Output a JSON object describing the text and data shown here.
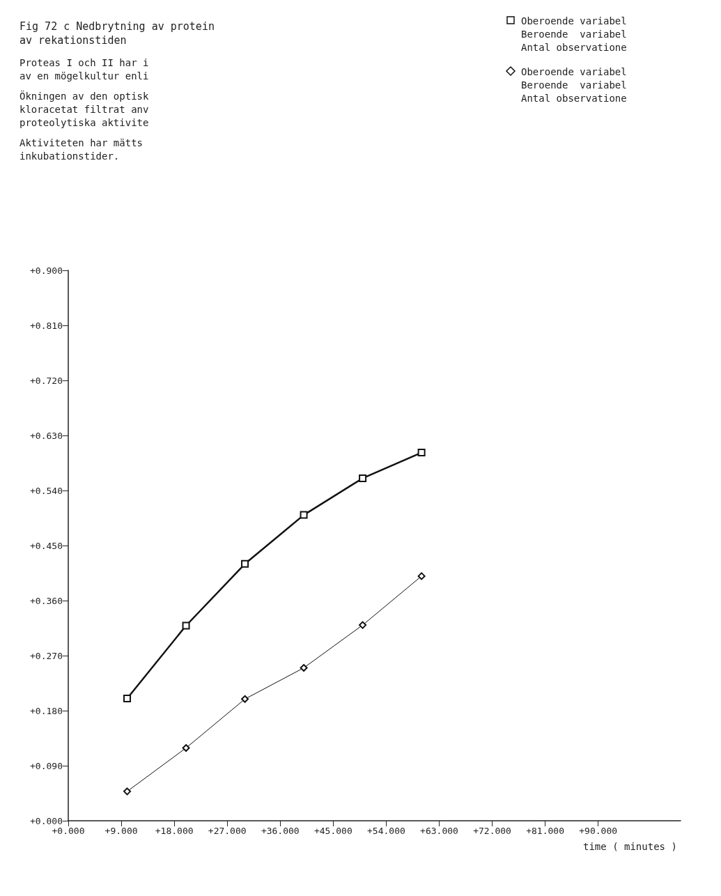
{
  "chart_data": {
    "type": "line",
    "title": "Fig 72 c Nedbrytning av protein\nav rekationstiden",
    "xlabel": "time ( minutes )",
    "x": [
      10,
      20,
      30,
      40,
      50,
      60
    ],
    "series": [
      {
        "name": "Oberoende variabel\nBeroende  variabel\nAntal observatione",
        "color": "#111111",
        "marker": "square",
        "values": [
          0.2,
          0.319,
          0.42,
          0.5,
          0.56,
          0.602
        ]
      },
      {
        "name": "Oberoende variabel\nBeroende  variabel\nAntal observatione",
        "color": "#111111",
        "marker": "diamond",
        "values": [
          0.048,
          0.119,
          0.199,
          0.25,
          0.32,
          0.4
        ]
      }
    ],
    "xlim": [
      0,
      104
    ],
    "ylim": [
      0,
      0.9
    ],
    "xticks": [
      {
        "value": 0,
        "label": "+0.000"
      },
      {
        "value": 9,
        "label": "+9.000"
      },
      {
        "value": 18,
        "label": "+18.000"
      },
      {
        "value": 27,
        "label": "+27.000"
      },
      {
        "value": 36,
        "label": "+36.000"
      },
      {
        "value": 45,
        "label": "+45.000"
      },
      {
        "value": 54,
        "label": "+54.000"
      },
      {
        "value": 63,
        "label": "+63.000"
      },
      {
        "value": 72,
        "label": "+72.000"
      },
      {
        "value": 81,
        "label": "+81.000"
      },
      {
        "value": 90,
        "label": "+90.000"
      }
    ],
    "yticks": [
      {
        "value": 0,
        "label": "+0.000"
      },
      {
        "value": 0.09,
        "label": "+0.090"
      },
      {
        "value": 0.18,
        "label": "+0.180"
      },
      {
        "value": 0.27,
        "label": "+0.270"
      },
      {
        "value": 0.36,
        "label": "+0.360"
      },
      {
        "value": 0.45,
        "label": "+0.450"
      },
      {
        "value": 0.54,
        "label": "+0.540"
      },
      {
        "value": 0.63,
        "label": "+0.630"
      },
      {
        "value": 0.72,
        "label": "+0.720"
      },
      {
        "value": 0.81,
        "label": "+0.810"
      },
      {
        "value": 0.9,
        "label": "+0.900"
      }
    ],
    "annotations": [
      "Proteas I och II har i\nav en mögelkultur enli",
      "Ökningen av den optisk\nkloracetat filtrat anv\nproteolytiska aktivite",
      "Aktiviteten har mätts\ninkubationstider."
    ],
    "grid": false,
    "legend": "top right",
    "line_style": "solid"
  }
}
